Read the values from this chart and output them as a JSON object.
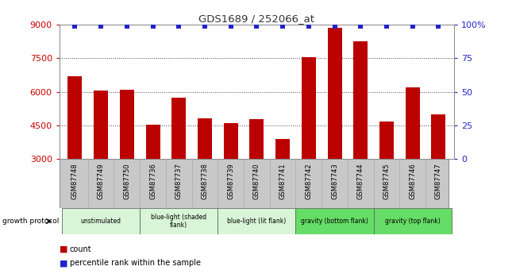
{
  "title": "GDS1689 / 252066_at",
  "samples": [
    "GSM87748",
    "GSM87749",
    "GSM87750",
    "GSM87736",
    "GSM87737",
    "GSM87738",
    "GSM87739",
    "GSM87740",
    "GSM87741",
    "GSM87742",
    "GSM87743",
    "GSM87744",
    "GSM87745",
    "GSM87746",
    "GSM87747"
  ],
  "counts": [
    6700,
    6050,
    6100,
    4520,
    5750,
    4820,
    4600,
    4780,
    3900,
    7550,
    8850,
    8250,
    4680,
    6200,
    5000
  ],
  "ylim_left": [
    3000,
    9000
  ],
  "ylim_right": [
    0,
    100
  ],
  "yticks_left": [
    3000,
    4500,
    6000,
    7500,
    9000
  ],
  "yticks_right": [
    0,
    25,
    50,
    75,
    100
  ],
  "bar_color": "#bb0000",
  "dot_color": "#2222cc",
  "title_color": "#333333",
  "left_tick_color": "#cc0000",
  "right_tick_color": "#2222cc",
  "groups": [
    {
      "label": "unstimulated",
      "indices": [
        0,
        2
      ],
      "color": "#d8f5d8"
    },
    {
      "label": "blue-light (shaded\nflank)",
      "indices": [
        3,
        5
      ],
      "color": "#d8f5d8"
    },
    {
      "label": "blue-light (lit flank)",
      "indices": [
        6,
        8
      ],
      "color": "#d8f5d8"
    },
    {
      "label": "gravity (bottom flank)",
      "indices": [
        9,
        11
      ],
      "color": "#66dd66"
    },
    {
      "label": "gravity (top flank)",
      "indices": [
        12,
        14
      ],
      "color": "#66dd66"
    }
  ],
  "growth_protocol_label": "growth protocol",
  "legend_count_label": "count",
  "legend_percentile_label": "percentile rank within the sample",
  "sample_bg_color": "#c8c8c8",
  "bg_color": "#ffffff"
}
